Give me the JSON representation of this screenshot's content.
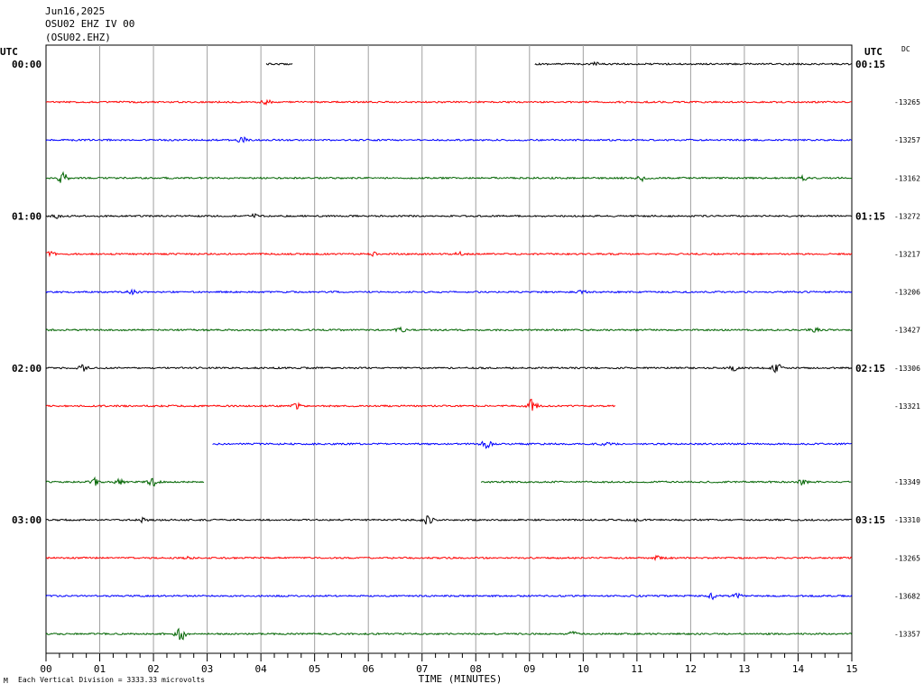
{
  "header": {
    "date": "Jun16,2025",
    "station": "OSU02 EHZ IV 00",
    "channel": "(OSU02.EHZ)"
  },
  "utc_left": "UTC",
  "utc_right": "UTC",
  "dc_label": "DC",
  "footer": {
    "marker": "M",
    "note": "Each Vertical Division = 3333.33 microvolts"
  },
  "colors": {
    "line1": "#000000",
    "line2": "#ff0000",
    "line3": "#0000ff",
    "line4": "#006400",
    "grid": "#a0a0a0"
  },
  "chart_data": {
    "type": "line",
    "title": "Jun16,2025",
    "xlabel": "TIME (MINUTES)",
    "ylabel": "",
    "xlim": [
      0,
      15
    ],
    "grid": true,
    "x_ticks": [
      "00",
      "01",
      "02",
      "03",
      "04",
      "05",
      "06",
      "07",
      "08",
      "09",
      "10",
      "11",
      "12",
      "13",
      "14",
      "15"
    ],
    "left_time_labels": [
      "00:00",
      "01:00",
      "02:00",
      "03:00"
    ],
    "right_time_labels": [
      "00:15",
      "01:15",
      "02:15",
      "03:15"
    ],
    "series": [
      {
        "color": "#000000",
        "dc": "",
        "segments": [
          [
            4.1,
            4.6
          ],
          [
            9.1,
            15
          ]
        ],
        "events": [
          {
            "t": 10.2,
            "amp": 2
          }
        ]
      },
      {
        "color": "#ff0000",
        "dc": "-13265",
        "segments": [
          [
            0,
            15
          ]
        ],
        "events": [
          {
            "t": 4.1,
            "amp": 2
          }
        ]
      },
      {
        "color": "#0000ff",
        "dc": "-13257",
        "segments": [
          [
            0,
            15
          ]
        ],
        "events": [
          {
            "t": 3.65,
            "amp": 3
          }
        ]
      },
      {
        "color": "#006400",
        "dc": "-13162",
        "segments": [
          [
            0,
            15
          ]
        ],
        "events": [
          {
            "t": 0.3,
            "amp": 7
          },
          {
            "t": 11.1,
            "amp": 3
          },
          {
            "t": 14.1,
            "amp": 2
          }
        ]
      },
      {
        "color": "#000000",
        "dc": "-13272",
        "segments": [
          [
            0,
            15
          ]
        ],
        "events": [
          {
            "t": 0.2,
            "amp": 2
          },
          {
            "t": 3.9,
            "amp": 2
          }
        ]
      },
      {
        "color": "#ff0000",
        "dc": "-13217",
        "segments": [
          [
            0,
            15
          ]
        ],
        "events": [
          {
            "t": 0.1,
            "amp": 3
          },
          {
            "t": 6.1,
            "amp": 2
          },
          {
            "t": 7.7,
            "amp": 2
          }
        ]
      },
      {
        "color": "#0000ff",
        "dc": "-13206",
        "segments": [
          [
            0,
            15
          ]
        ],
        "events": [
          {
            "t": 1.6,
            "amp": 2
          },
          {
            "t": 10.0,
            "amp": 2
          }
        ]
      },
      {
        "color": "#006400",
        "dc": "-13427",
        "segments": [
          [
            0,
            15
          ]
        ],
        "events": [
          {
            "t": 6.6,
            "amp": 2
          },
          {
            "t": 14.3,
            "amp": 3
          }
        ]
      },
      {
        "color": "#000000",
        "dc": "-13306",
        "segments": [
          [
            0,
            15
          ]
        ],
        "events": [
          {
            "t": 0.7,
            "amp": 3
          },
          {
            "t": 12.8,
            "amp": 3
          },
          {
            "t": 13.6,
            "amp": 5
          }
        ]
      },
      {
        "color": "#ff0000",
        "dc": "-13321",
        "segments": [
          [
            0,
            10.6
          ]
        ],
        "events": [
          {
            "t": 4.65,
            "amp": 3
          },
          {
            "t": 9.05,
            "amp": 7
          }
        ]
      },
      {
        "color": "#0000ff",
        "dc": "",
        "segments": [
          [
            3.1,
            15
          ]
        ],
        "events": [
          {
            "t": 8.2,
            "amp": 5
          },
          {
            "t": 10.4,
            "amp": 2
          }
        ]
      },
      {
        "color": "#006400",
        "dc": "-13349",
        "segments": [
          [
            0,
            2.95
          ],
          [
            8.1,
            15
          ]
        ],
        "events": [
          {
            "t": 0.9,
            "amp": 4
          },
          {
            "t": 1.35,
            "amp": 4
          },
          {
            "t": 2.0,
            "amp": 5
          },
          {
            "t": 14.1,
            "amp": 3
          }
        ]
      },
      {
        "color": "#000000",
        "dc": "-13310",
        "segments": [
          [
            0,
            15
          ]
        ],
        "events": [
          {
            "t": 1.8,
            "amp": 2
          },
          {
            "t": 7.1,
            "amp": 7
          },
          {
            "t": 11.0,
            "amp": 2
          }
        ]
      },
      {
        "color": "#ff0000",
        "dc": "-13265",
        "segments": [
          [
            0,
            15
          ]
        ],
        "events": [
          {
            "t": 2.6,
            "amp": 2
          },
          {
            "t": 11.4,
            "amp": 2
          }
        ]
      },
      {
        "color": "#0000ff",
        "dc": "-13682",
        "segments": [
          [
            0,
            15
          ]
        ],
        "events": [
          {
            "t": 12.4,
            "amp": 4
          },
          {
            "t": 12.85,
            "amp": 3
          }
        ]
      },
      {
        "color": "#006400",
        "dc": "-13357",
        "segments": [
          [
            0,
            15
          ]
        ],
        "events": [
          {
            "t": 2.5,
            "amp": 8
          },
          {
            "t": 9.8,
            "amp": 2
          }
        ]
      }
    ]
  }
}
